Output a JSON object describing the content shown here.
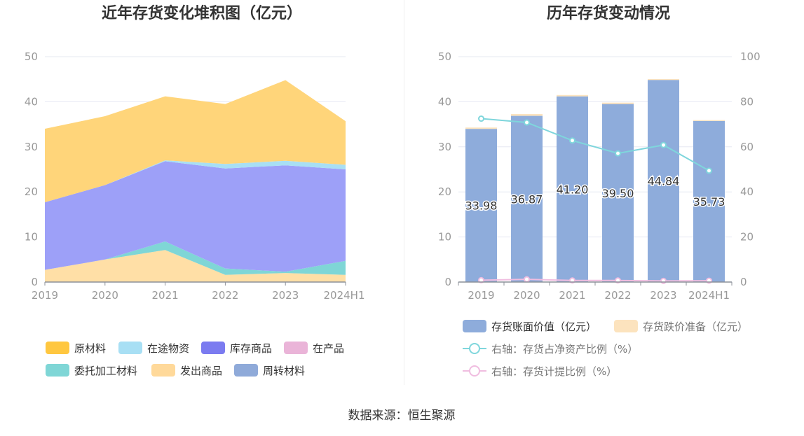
{
  "source": "数据来源：恒生聚源",
  "left_chart": {
    "chart_data": {
      "type": "area",
      "title": "近年存货变化堆积图（亿元）",
      "categories": [
        "2019",
        "2020",
        "2021",
        "2022",
        "2023",
        "2024H1"
      ],
      "ylim": [
        0,
        50
      ],
      "yticks": [
        "0",
        "10",
        "20",
        "30",
        "40",
        "50"
      ],
      "series": [
        {
          "name": "发出商品",
          "color": "#FFDFA6",
          "values": [
            2.7,
            5.0,
            7.1,
            1.6,
            2.0,
            1.6
          ]
        },
        {
          "name": "委托加工材料",
          "color": "#7FD6D6",
          "values": [
            0,
            0,
            1.9,
            1.4,
            0.3,
            3.1
          ]
        },
        {
          "name": "库存商品",
          "color": "#9DA0F8",
          "values": [
            15.0,
            16.5,
            17.8,
            22.2,
            23.6,
            20.3
          ]
        },
        {
          "name": "在途物资",
          "color": "#A8DFF4",
          "values": [
            0,
            0,
            0.2,
            1.0,
            1.0,
            1.0
          ]
        },
        {
          "name": "原材料",
          "color": "#FFD57A",
          "values": [
            16.3,
            15.3,
            14.2,
            13.3,
            17.9,
            9.7
          ]
        }
      ],
      "legend": [
        {
          "name": "原材料",
          "color": "#FFC740"
        },
        {
          "name": "在途物资",
          "color": "#A8DFF4"
        },
        {
          "name": "库存商品",
          "color": "#7B7BF0"
        },
        {
          "name": "在产品",
          "color": "#EAB4D8"
        },
        {
          "name": "委托加工材料",
          "color": "#7FD6D6"
        },
        {
          "name": "发出商品",
          "color": "#FFD99A"
        },
        {
          "name": "周转材料",
          "color": "#8FAAD9"
        }
      ]
    }
  },
  "right_chart": {
    "chart_data": {
      "type": "bar",
      "title": "历年存货变动情况",
      "categories": [
        "2019",
        "2020",
        "2021",
        "2022",
        "2023",
        "2024H1"
      ],
      "ylim": [
        0,
        50
      ],
      "yticks": [
        "0",
        "10",
        "20",
        "30",
        "40",
        "50"
      ],
      "y2lim": [
        0,
        100
      ],
      "y2ticks": [
        "0",
        "20",
        "40",
        "60",
        "80",
        "100"
      ],
      "bars": {
        "name": "存货账面价值（亿元）",
        "color": "#8EACDB",
        "values": [
          33.98,
          36.87,
          41.2,
          39.5,
          44.84,
          35.73
        ],
        "labels": [
          "33.98",
          "36.87",
          "41.20",
          "39.50",
          "44.84",
          "35.73"
        ]
      },
      "bars_top": {
        "name": "存货跌价准备（亿元）",
        "color": "#FCE3BE",
        "values": [
          0.3,
          0.4,
          0.3,
          0.3,
          0.2,
          0.2
        ]
      },
      "line1": {
        "name": "右轴：存货占净资产比例（%）",
        "color": "#7FD6DC",
        "values": [
          72.5,
          70.8,
          62.8,
          57.1,
          60.8,
          49.4
        ]
      },
      "line2": {
        "name": "右轴：存货计提比例（%）",
        "color": "#F0BDE0",
        "values": [
          0.8,
          1.2,
          0.7,
          0.7,
          0.5,
          0.6
        ]
      }
    }
  }
}
